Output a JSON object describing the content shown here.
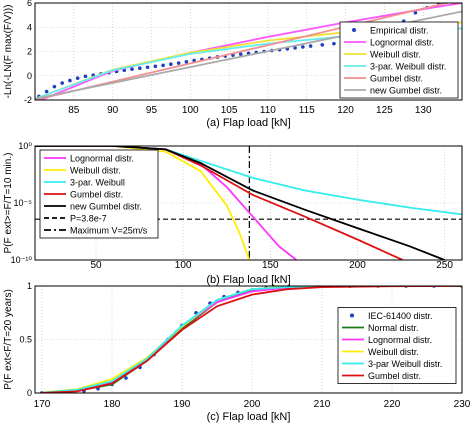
{
  "chart_data": [
    {
      "type": "scatter",
      "xlabel": "(a) Flap load [kN]",
      "ylabel": "-Ln(-LN(F max(F/V)))",
      "xlim": [
        80,
        135
      ],
      "ylim": [
        -2,
        6
      ],
      "xticks": [
        85,
        90,
        95,
        100,
        105,
        110,
        115,
        120,
        125,
        130
      ],
      "yticks": [
        -2,
        0,
        2,
        4,
        6
      ],
      "grid": true,
      "legend_position": "bottom-right",
      "series": [
        {
          "name": "Empirical distr.",
          "kind": "points",
          "color": "#1f3fbf",
          "x": [
            80.5,
            81.5,
            82.5,
            83.5,
            84.5,
            85.5,
            86.5,
            87.5,
            88.5,
            89.5,
            90.5,
            91.5,
            92.5,
            93.5,
            94.5,
            95.5,
            96.5,
            97.5,
            98.5,
            99.5,
            100.5,
            101.5,
            102.5,
            103.5,
            104.5,
            105.5,
            106.5,
            107.5,
            108.5,
            109.5,
            110.5,
            111.5,
            112.5,
            113.5,
            114.5,
            115.5,
            117,
            118.5,
            120,
            121.5,
            123,
            124.5,
            126,
            127.5,
            129,
            130.5,
            132
          ],
          "y": [
            -1.7,
            -1.3,
            -0.9,
            -0.6,
            -0.4,
            -0.2,
            -0.05,
            0.05,
            0.15,
            0.25,
            0.35,
            0.45,
            0.55,
            0.62,
            0.7,
            0.78,
            0.86,
            0.95,
            1.05,
            1.15,
            1.25,
            1.35,
            1.45,
            1.55,
            1.62,
            1.7,
            1.78,
            1.85,
            1.92,
            2.0,
            2.08,
            2.15,
            2.22,
            2.3,
            2.38,
            2.45,
            2.55,
            2.65,
            2.8,
            2.95,
            3.2,
            3.5,
            3.9,
            4.5,
            5.2,
            5.6,
            6.0
          ]
        },
        {
          "name": "Lognormal distr.",
          "kind": "line",
          "color": "#ff55ff",
          "x": [
            80,
            90,
            100,
            110,
            120,
            130,
            135
          ],
          "y": [
            -2.2,
            0.4,
            1.9,
            3.2,
            4.4,
            5.5,
            6.0
          ]
        },
        {
          "name": "Weibull distr.",
          "kind": "line",
          "color": "#f0e030",
          "x": [
            80,
            90,
            100,
            110,
            120,
            130,
            135
          ],
          "y": [
            -1.9,
            0.5,
            1.9,
            2.9,
            3.6,
            4.2,
            4.4
          ]
        },
        {
          "name": "3-par. Weibull distr.",
          "kind": "line",
          "color": "#66eeee",
          "x": [
            80,
            90,
            100,
            110,
            120,
            130,
            135
          ],
          "y": [
            -1.9,
            0.45,
            1.8,
            2.65,
            3.25,
            3.7,
            3.9
          ]
        },
        {
          "name": "Gumbel distr.",
          "kind": "line",
          "color": "#f09090",
          "x": [
            80,
            135
          ],
          "y": [
            -2.0,
            6.3
          ]
        },
        {
          "name": "new Gumbel distr.",
          "kind": "line",
          "color": "#aaaaaa",
          "x": [
            80,
            135
          ],
          "y": [
            -1.9,
            5.3
          ]
        }
      ]
    },
    {
      "type": "line",
      "xlabel": "(b) Flap load [kN]",
      "ylabel": "P(F ext>=F/T=10 min.)",
      "xlim": [
        15,
        260
      ],
      "ylog_exp_lim": [
        -10,
        0
      ],
      "xticks": [
        50,
        100,
        150,
        200,
        250
      ],
      "ytick_labels": [
        "10⁰",
        "10⁻⁵",
        "10⁻¹⁰"
      ],
      "ytick_exps": [
        0,
        -5,
        -10
      ],
      "grid": true,
      "legend_position": "top-left",
      "vline_x": 138,
      "hline_exp": -6.42,
      "series": [
        {
          "name": "Lognormal distr.",
          "color": "#ff33ff",
          "style": "solid",
          "x": [
            15,
            60,
            90,
            110,
            125,
            140,
            155,
            165
          ],
          "y_exp": [
            0,
            0,
            -0.3,
            -1.6,
            -3.6,
            -6.2,
            -8.8,
            -10
          ]
        },
        {
          "name": "Weibull distr.",
          "color": "#ffee00",
          "style": "solid",
          "x": [
            15,
            60,
            90,
            110,
            125,
            132,
            138
          ],
          "y_exp": [
            0,
            0,
            -0.5,
            -2.2,
            -5.2,
            -7.5,
            -10
          ]
        },
        {
          "name": "3-par. Weibull",
          "color": "#33eeee",
          "style": "solid",
          "x": [
            15,
            60,
            90,
            110,
            140,
            170,
            200,
            230,
            260
          ],
          "y_exp": [
            0,
            0,
            -0.3,
            -1.3,
            -2.8,
            -3.9,
            -4.7,
            -5.4,
            -6.0
          ]
        },
        {
          "name": "Gumbel distr.",
          "color": "#dd1111",
          "style": "solid",
          "x": [
            15,
            60,
            90,
            110,
            140,
            170,
            200,
            226
          ],
          "y_exp": [
            0,
            0,
            -0.3,
            -1.7,
            -4.3,
            -6.2,
            -8.2,
            -10
          ]
        },
        {
          "name": "new Gumbel distr.",
          "color": "#000000",
          "style": "solid",
          "x": [
            15,
            60,
            90,
            110,
            140,
            170,
            200,
            230,
            250
          ],
          "y_exp": [
            0,
            0,
            -0.3,
            -1.5,
            -3.9,
            -5.6,
            -7.2,
            -8.8,
            -10
          ]
        },
        {
          "name": "P=3.8e-7",
          "color": "#000000",
          "style": "dashed",
          "x": [],
          "y_exp": []
        },
        {
          "name": "Maximum V=25m/s",
          "color": "#000000",
          "style": "dashdot",
          "x": [],
          "y_exp": []
        }
      ]
    },
    {
      "type": "line",
      "xlabel": "(c) Flap load [kN]",
      "ylabel": "P(F ext<F/T=20 years)",
      "xlim": [
        169,
        230
      ],
      "ylim": [
        0,
        1
      ],
      "xticks": [
        170,
        180,
        190,
        200,
        210,
        220,
        230
      ],
      "yticks": [
        0,
        0.5,
        1
      ],
      "grid": true,
      "legend_position": "right",
      "series": [
        {
          "name": "IEC-61400 distr.",
          "kind": "points",
          "color": "#1f3fbf",
          "x": [
            170,
            172,
            174,
            176,
            178,
            180,
            182,
            184,
            186,
            188,
            190,
            192,
            194,
            196,
            198,
            200,
            202,
            204,
            206,
            208,
            210,
            214,
            218,
            222,
            226,
            230
          ],
          "y": [
            0.002,
            0.005,
            0.01,
            0.02,
            0.04,
            0.08,
            0.14,
            0.24,
            0.36,
            0.5,
            0.63,
            0.75,
            0.84,
            0.9,
            0.94,
            0.965,
            0.98,
            0.988,
            0.993,
            0.996,
            0.998,
            0.999,
            1,
            1,
            1,
            1
          ]
        },
        {
          "name": "Normal distr.",
          "color": "#1a7a1a",
          "x": [
            170,
            175,
            180,
            185,
            190,
            195,
            200,
            205,
            210,
            220,
            230
          ],
          "y": [
            0.003,
            0.02,
            0.08,
            0.3,
            0.6,
            0.85,
            0.96,
            0.99,
            1,
            1,
            1
          ]
        },
        {
          "name": "Lognormal distr.",
          "color": "#ff33ff",
          "x": [
            170,
            175,
            180,
            185,
            190,
            195,
            200,
            205,
            210,
            220,
            230
          ],
          "y": [
            0.003,
            0.02,
            0.1,
            0.32,
            0.62,
            0.85,
            0.95,
            0.985,
            0.995,
            1,
            1
          ]
        },
        {
          "name": "Weibull distr.",
          "color": "#ffee00",
          "x": [
            170,
            175,
            180,
            185,
            190,
            195,
            200,
            205,
            210,
            220,
            230
          ],
          "y": [
            0.006,
            0.035,
            0.13,
            0.33,
            0.62,
            0.87,
            0.97,
            0.995,
            1,
            1,
            1
          ]
        },
        {
          "name": "3-par Weibull distr.",
          "color": "#33eeee",
          "x": [
            170,
            175,
            180,
            185,
            190,
            195,
            200,
            205,
            210,
            220,
            230
          ],
          "y": [
            0.004,
            0.03,
            0.11,
            0.32,
            0.63,
            0.87,
            0.97,
            0.99,
            1,
            1,
            1
          ]
        },
        {
          "name": "Gumbel distr.",
          "color": "#dd1111",
          "x": [
            170,
            175,
            180,
            185,
            190,
            195,
            200,
            205,
            210,
            220,
            230
          ],
          "y": [
            0.001,
            0.015,
            0.09,
            0.3,
            0.59,
            0.81,
            0.92,
            0.97,
            0.99,
            0.998,
            1
          ]
        }
      ]
    }
  ]
}
